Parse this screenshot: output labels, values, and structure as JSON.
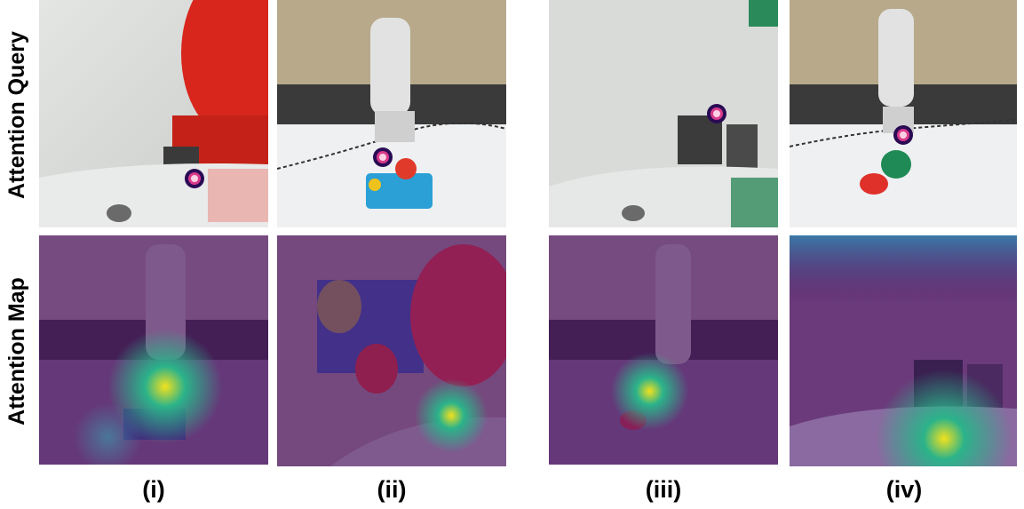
{
  "figure": {
    "row_labels": [
      "Attention Query",
      "Attention Map"
    ],
    "column_labels": [
      "(i)",
      "(ii)",
      "(iii)",
      "(iv)"
    ]
  },
  "panels": [
    {
      "row": "query",
      "column": "(i)",
      "content": "close-up camera view, red gripper top right, query marker on white table"
    },
    {
      "row": "query",
      "column": "(ii)",
      "content": "robot arm above colorful toy block, query marker at gripper"
    },
    {
      "row": "query",
      "column": "(iii)",
      "content": "close-up camera view, query marker near center"
    },
    {
      "row": "query",
      "column": "(iv)",
      "content": "robot arm holding green cup, red disk on table, query marker at gripper"
    },
    {
      "row": "map",
      "column": "(i)",
      "content": "attention heatmap over arm view, peak below gripper"
    },
    {
      "row": "map",
      "column": "(ii)",
      "content": "attention heatmap over close-up, peak lower right"
    },
    {
      "row": "map",
      "column": "(iii)",
      "content": "attention heatmap over arm view, peak at cup"
    },
    {
      "row": "map",
      "column": "(iv)",
      "content": "attention heatmap over close-up, peak lower right"
    }
  ],
  "colors": {
    "query_marker_core": "#ff6ea8",
    "query_marker_ring": "#2a0a55",
    "heatmap_low": "#4b1f6b",
    "heatmap_mid": "#2bb38a",
    "heatmap_high": "#f2e11d"
  }
}
